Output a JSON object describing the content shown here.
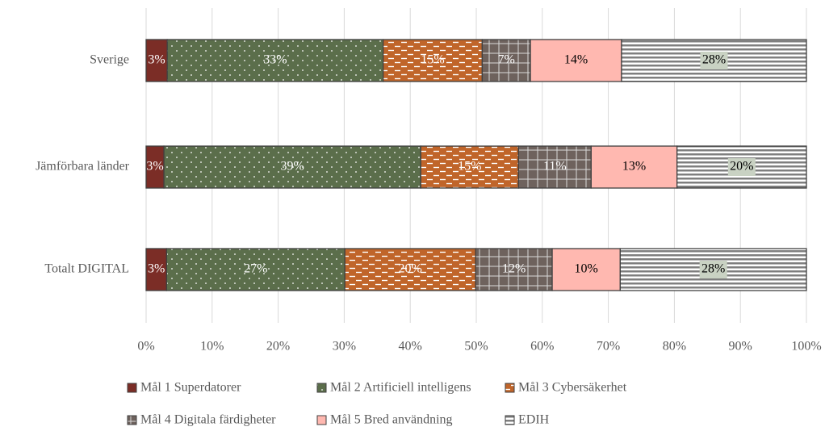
{
  "chart_data": {
    "type": "stacked_bar_horizontal",
    "categories": [
      "Sverige",
      "Jämförbara länder",
      "Totalt DIGITAL"
    ],
    "series": [
      {
        "name": "Mål 1 Superdatorer",
        "color": "#7b2d26",
        "values": [
          3.2,
          2.7,
          3.1
        ],
        "value_labels": [
          "3%",
          "3%",
          "3%"
        ]
      },
      {
        "name": "Mål 2 Artificiell intelligens",
        "color": "#5b6e4b",
        "values": [
          32.7,
          38.9,
          27.0
        ],
        "value_labels": [
          "33%",
          "39%",
          "27%"
        ]
      },
      {
        "name": "Mål 3 Cybersäkerhet",
        "color": "#c0652a",
        "values": [
          15.0,
          14.8,
          19.8
        ],
        "value_labels": [
          "15%",
          "15%",
          "20%"
        ]
      },
      {
        "name": "Mål 4 Digitala färdigheter",
        "color": "#6e625d",
        "values": [
          7.3,
          11.0,
          11.6
        ],
        "value_labels": [
          "7%",
          "11%",
          "12%"
        ]
      },
      {
        "name": "Mål 5 Bred användning",
        "color": "#ffb8b0",
        "values": [
          13.8,
          13.0,
          10.3
        ],
        "value_labels": [
          "14%",
          "13%",
          "10%"
        ]
      },
      {
        "name": "EDIH",
        "color": "#7f7f7f",
        "values": [
          28.0,
          19.6,
          28.2
        ],
        "value_labels": [
          "28%",
          "20%",
          "28%"
        ]
      }
    ],
    "xlim": [
      0,
      100
    ],
    "xticks": [
      {
        "value": 0,
        "label": "0%"
      },
      {
        "value": 10,
        "label": "10%"
      },
      {
        "value": 20,
        "label": "20%"
      },
      {
        "value": 30,
        "label": "30%"
      },
      {
        "value": 40,
        "label": "40%"
      },
      {
        "value": 50,
        "label": "50%"
      },
      {
        "value": 60,
        "label": "60%"
      },
      {
        "value": 70,
        "label": "70%"
      },
      {
        "value": 80,
        "label": "80%"
      },
      {
        "value": 90,
        "label": "90%"
      },
      {
        "value": 100,
        "label": "100%"
      }
    ],
    "grid": true,
    "legend": "bottom"
  }
}
